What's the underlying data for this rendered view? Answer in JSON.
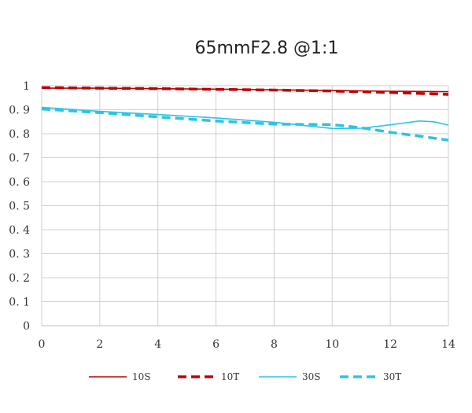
{
  "chart_data": {
    "type": "line",
    "title": "65mmF2.8 @1:1",
    "xlabel": "",
    "ylabel": "",
    "xlim": [
      0,
      14
    ],
    "ylim": [
      0,
      1
    ],
    "x_ticks": [
      "0",
      "2",
      "4",
      "6",
      "8",
      "10",
      "12",
      "14"
    ],
    "y_ticks": [
      "0",
      "0. 1",
      "0. 2",
      "0. 3",
      "0. 4",
      "0. 5",
      "0. 6",
      "0. 7",
      "0. 8",
      "0. 9",
      "1"
    ],
    "grid": true,
    "legend_position": "bottom",
    "series": [
      {
        "name": "10S",
        "color": "#c00000",
        "dash": "solid",
        "points": [
          [
            0,
            0.99
          ],
          [
            2,
            0.99
          ],
          [
            4,
            0.988
          ],
          [
            6,
            0.986
          ],
          [
            8,
            0.983
          ],
          [
            10,
            0.98
          ],
          [
            12,
            0.977
          ],
          [
            14,
            0.975
          ]
        ]
      },
      {
        "name": "10T",
        "color": "#c00000",
        "dash": "dashed",
        "points": [
          [
            0,
            0.992
          ],
          [
            2,
            0.99
          ],
          [
            4,
            0.988
          ],
          [
            6,
            0.985
          ],
          [
            8,
            0.982
          ],
          [
            10,
            0.978
          ],
          [
            12,
            0.972
          ],
          [
            14,
            0.964
          ]
        ]
      },
      {
        "name": "30S",
        "color": "#29c5e6",
        "dash": "solid",
        "points": [
          [
            0,
            0.91
          ],
          [
            2,
            0.893
          ],
          [
            4,
            0.88
          ],
          [
            6,
            0.866
          ],
          [
            8,
            0.848
          ],
          [
            10,
            0.822
          ],
          [
            11,
            0.823
          ],
          [
            12,
            0.837
          ],
          [
            13,
            0.853
          ],
          [
            13.5,
            0.85
          ],
          [
            14,
            0.836
          ]
        ]
      },
      {
        "name": "30T",
        "color": "#29c5e6",
        "dash": "dashed",
        "points": [
          [
            0,
            0.903
          ],
          [
            2,
            0.888
          ],
          [
            4,
            0.87
          ],
          [
            6,
            0.853
          ],
          [
            8,
            0.84
          ],
          [
            10,
            0.838
          ],
          [
            11,
            0.825
          ],
          [
            12,
            0.806
          ],
          [
            13,
            0.79
          ],
          [
            14,
            0.773
          ]
        ]
      }
    ]
  }
}
